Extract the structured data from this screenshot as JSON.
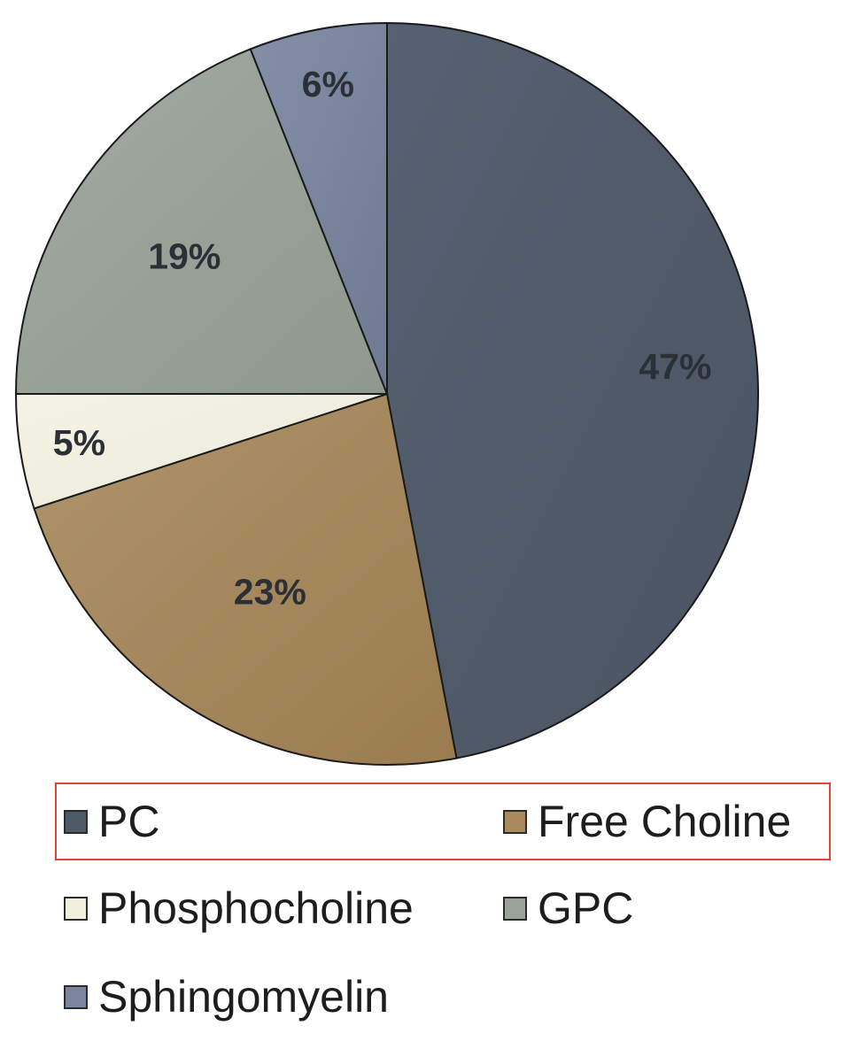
{
  "chart_data": {
    "type": "pie",
    "title": "",
    "slices": [
      {
        "label": "PC",
        "value": 47,
        "display": "47%",
        "color": "#4f5a68"
      },
      {
        "label": "Free Choline",
        "value": 23,
        "display": "23%",
        "color": "#a88a5e"
      },
      {
        "label": "Phosphocholine",
        "value": 5,
        "display": "5%",
        "color": "#f1f0de"
      },
      {
        "label": "GPC",
        "value": 19,
        "display": "19%",
        "color": "#9aa39a"
      },
      {
        "label": "Sphingomyelin",
        "value": 6,
        "display": "6%",
        "color": "#7a869e"
      }
    ],
    "legend_position": "bottom",
    "highlight_color": "#e0443b"
  }
}
